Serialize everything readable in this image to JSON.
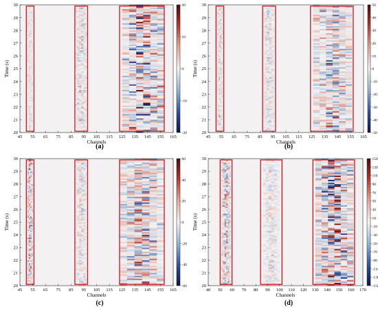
{
  "chart_data": [
    {
      "type": "heatmap",
      "panel_label": "(a)",
      "xlabel": "Channels",
      "ylabel": "Time (s)",
      "xlim": [
        45,
        165
      ],
      "ylim": [
        20,
        30
      ],
      "x_ticks": [
        45,
        55,
        65,
        75,
        85,
        95,
        105,
        115,
        125,
        135,
        145,
        155,
        165
      ],
      "y_ticks": [
        20,
        21,
        22,
        23,
        24,
        25,
        26,
        27,
        28,
        29,
        30
      ],
      "colorbar_ticks": [
        20,
        10,
        0,
        -10,
        -20
      ],
      "colorbar_range": [
        -20,
        20
      ],
      "highlight_boxes": [
        {
          "channels": [
            50,
            56
          ],
          "time": [
            20.1,
            29.9
          ]
        },
        {
          "channels": [
            88,
            98
          ],
          "time": [
            20.1,
            29.9
          ]
        },
        {
          "channels": [
            123,
            158
          ],
          "time": [
            20.1,
            29.9
          ]
        }
      ],
      "bands": [
        {
          "channels": [
            50,
            56
          ],
          "intensity": 0.25,
          "noise": 0.1
        },
        {
          "channels": [
            88,
            98
          ],
          "intensity": 0.4,
          "noise": 0.15
        },
        {
          "channels": [
            125,
            158
          ],
          "intensity": 0.7,
          "noise": 0.35
        }
      ]
    },
    {
      "type": "heatmap",
      "panel_label": "(b)",
      "xlabel": "Channels",
      "ylabel": "Time (s)",
      "xlim": [
        45,
        165
      ],
      "ylim": [
        20,
        30
      ],
      "x_ticks": [
        45,
        55,
        65,
        75,
        85,
        95,
        105,
        115,
        125,
        135,
        145,
        155,
        165
      ],
      "y_ticks": [
        20,
        21,
        22,
        23,
        24,
        25,
        26,
        27,
        28,
        29,
        30
      ],
      "colorbar_ticks": [
        50,
        40,
        30,
        20,
        10,
        0,
        -10,
        -20,
        -30,
        -40,
        -50
      ],
      "colorbar_range": [
        -50,
        50
      ],
      "highlight_boxes": [
        {
          "channels": [
            51,
            57
          ],
          "time": [
            20.1,
            29.9
          ]
        },
        {
          "channels": [
            87,
            97
          ],
          "time": [
            20.1,
            29.9
          ]
        },
        {
          "channels": [
            124,
            157
          ],
          "time": [
            20.1,
            29.9
          ]
        }
      ],
      "bands": [
        {
          "channels": [
            51,
            57
          ],
          "intensity": 0.35,
          "noise": 0.15
        },
        {
          "channels": [
            87,
            97
          ],
          "intensity": 0.35,
          "noise": 0.12
        },
        {
          "channels": [
            126,
            156
          ],
          "intensity": 0.55,
          "noise": 0.25
        }
      ]
    },
    {
      "type": "heatmap",
      "panel_label": "(c)",
      "xlabel": "Channels",
      "ylabel": "Time (s)",
      "xlim": [
        45,
        165
      ],
      "ylim": [
        20,
        30
      ],
      "x_ticks": [
        45,
        55,
        65,
        75,
        85,
        95,
        105,
        115,
        125,
        135,
        145,
        155,
        165
      ],
      "y_ticks": [
        20,
        21,
        22,
        23,
        24,
        25,
        26,
        27,
        28,
        29,
        30
      ],
      "colorbar_ticks": [
        60,
        40,
        20,
        0,
        -20,
        -40,
        -60
      ],
      "colorbar_range": [
        -60,
        60
      ],
      "highlight_boxes": [
        {
          "channels": [
            50,
            56
          ],
          "time": [
            20.1,
            29.9
          ]
        },
        {
          "channels": [
            88,
            98
          ],
          "time": [
            20.1,
            29.9
          ]
        },
        {
          "channels": [
            123,
            158
          ],
          "time": [
            20.1,
            29.9
          ]
        }
      ],
      "bands": [
        {
          "channels": [
            50,
            56
          ],
          "intensity": 0.55,
          "noise": 0.2
        },
        {
          "channels": [
            88,
            98
          ],
          "intensity": 0.4,
          "noise": 0.12
        },
        {
          "channels": [
            123,
            158
          ],
          "intensity": 0.6,
          "noise": 0.25
        }
      ]
    },
    {
      "type": "heatmap",
      "panel_label": "(d)",
      "xlabel": "Channels",
      "ylabel": "Time (s)",
      "xlim": [
        40,
        170
      ],
      "ylim": [
        20,
        30
      ],
      "x_ticks": [
        40,
        50,
        60,
        70,
        80,
        90,
        100,
        110,
        120,
        130,
        140,
        150,
        160,
        170
      ],
      "y_ticks": [
        20,
        21,
        22,
        23,
        24,
        25,
        26,
        27,
        28,
        29,
        30
      ],
      "colorbar_ticks": [
        150,
        130,
        110,
        90,
        70,
        50,
        30,
        10,
        -10,
        -30,
        -50,
        -70,
        -90,
        -110,
        -130,
        -150
      ],
      "colorbar_range": [
        -150,
        150
      ],
      "highlight_boxes": [
        {
          "channels": [
            50,
            60
          ],
          "time": [
            20.1,
            29.9
          ]
        },
        {
          "channels": [
            84,
            102
          ],
          "time": [
            20.1,
            29.9
          ]
        },
        {
          "channels": [
            128,
            163
          ],
          "time": [
            20.1,
            29.9
          ]
        }
      ],
      "bands": [
        {
          "channels": [
            51,
            59
          ],
          "intensity": 0.55,
          "noise": 0.2
        },
        {
          "channels": [
            86,
            100
          ],
          "intensity": 0.35,
          "noise": 0.1
        },
        {
          "channels": [
            130,
            162
          ],
          "intensity": 0.8,
          "noise": 0.3
        }
      ]
    }
  ]
}
